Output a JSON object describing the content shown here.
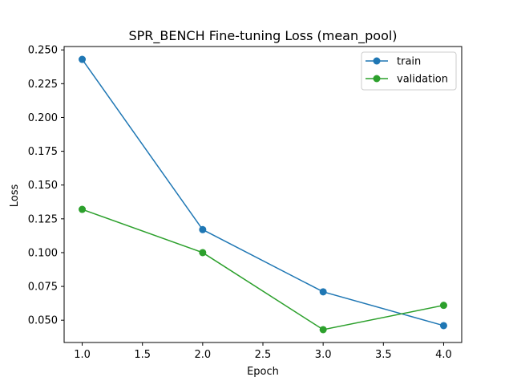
{
  "chart_data": {
    "type": "line",
    "title": "SPR_BENCH Fine-tuning Loss (mean_pool)",
    "xlabel": "Epoch",
    "ylabel": "Loss",
    "x": [
      1.0,
      2.0,
      3.0,
      4.0
    ],
    "xlim": [
      0.85,
      4.15
    ],
    "ylim": [
      0.0335,
      0.2525
    ],
    "xticks": [
      "1.0",
      "1.5",
      "2.0",
      "2.5",
      "3.0",
      "3.5",
      "4.0"
    ],
    "yticks": [
      "0.050",
      "0.075",
      "0.100",
      "0.125",
      "0.150",
      "0.175",
      "0.200",
      "0.225",
      "0.250"
    ],
    "series": [
      {
        "name": "train",
        "color": "#1f77b4",
        "values": [
          0.243,
          0.117,
          0.071,
          0.046
        ]
      },
      {
        "name": "validation",
        "color": "#2ca02c",
        "values": [
          0.132,
          0.1,
          0.043,
          0.061
        ]
      }
    ],
    "legend": "top-right",
    "grid": false
  }
}
